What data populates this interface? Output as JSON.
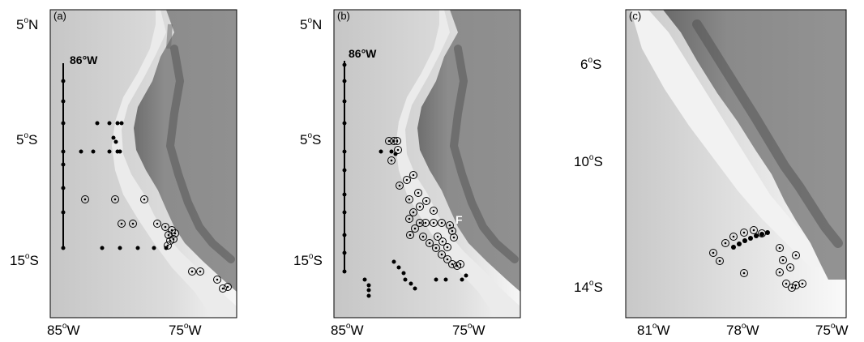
{
  "panels": [
    {
      "label": "(a)",
      "y_ticks": [
        {
          "deg": "5",
          "hem": "N"
        },
        {
          "deg": "5",
          "hem": "S"
        },
        {
          "deg": "15",
          "hem": "S"
        }
      ],
      "x_ticks": [
        {
          "deg": "85",
          "hem": "W"
        },
        {
          "deg": "75",
          "hem": "W"
        }
      ],
      "annotations": [
        "86°W"
      ]
    },
    {
      "label": "(b)",
      "y_ticks": [
        {
          "deg": "5",
          "hem": "N"
        },
        {
          "deg": "5",
          "hem": "S"
        },
        {
          "deg": "15",
          "hem": "S"
        }
      ],
      "x_ticks": [
        {
          "deg": "85",
          "hem": "W"
        },
        {
          "deg": "75",
          "hem": "W"
        }
      ],
      "annotations": [
        "86°W",
        "F"
      ]
    },
    {
      "label": "(c)",
      "y_ticks": [
        {
          "deg": "6",
          "hem": "S"
        },
        {
          "deg": "10",
          "hem": "S"
        },
        {
          "deg": "14",
          "hem": "S"
        }
      ],
      "x_ticks": [
        {
          "deg": "81",
          "hem": "W"
        },
        {
          "deg": "78",
          "hem": "W"
        },
        {
          "deg": "75",
          "hem": "W"
        }
      ],
      "annotations": []
    }
  ],
  "colors": {
    "ocean_light": "#f2f2f2",
    "ocean_deep": "#c4c4c4",
    "land": "#8a8a8a",
    "ridge": "#5a5a5a",
    "marker": "#000000"
  }
}
